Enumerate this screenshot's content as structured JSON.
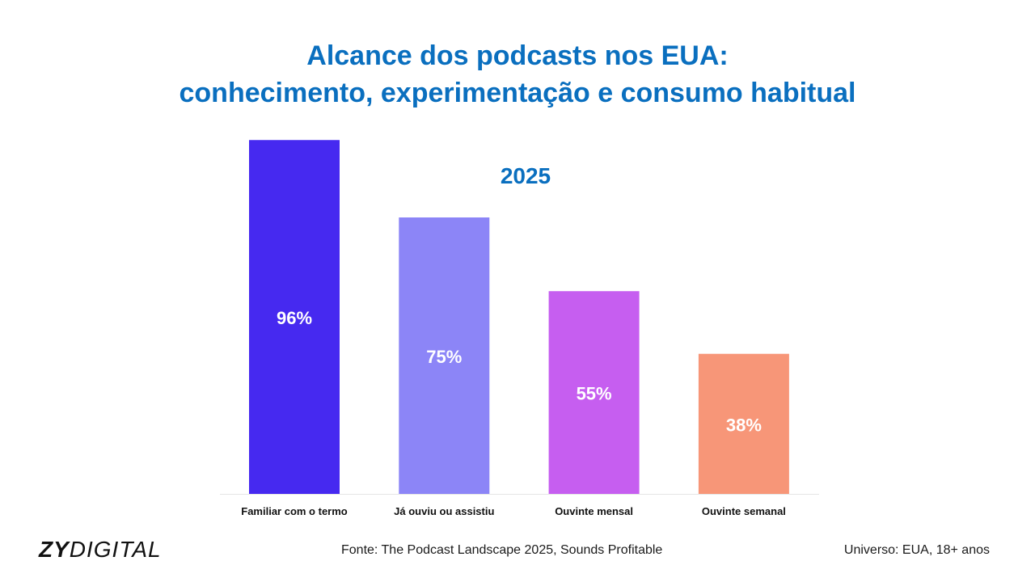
{
  "title_lines": [
    "Alcance dos podcasts nos EUA:",
    "conhecimento, experimentação e consumo habitual"
  ],
  "footer": {
    "logo_bold": "ZY",
    "logo_light": "DIGITAL",
    "source": "Fonte: The Podcast Landscape 2025, Sounds Profitable",
    "universe": "Universo: EUA, 18+ anos"
  },
  "chart_data": {
    "type": "bar",
    "title": "Alcance dos podcasts nos EUA: conhecimento, experimentação e consumo habitual",
    "subtitle": "2025",
    "categories": [
      "Familiar com o termo",
      "Já ouviu ou assistiu",
      "Ouvinte mensal",
      "Ouvinte semanal"
    ],
    "values": [
      96,
      75,
      55,
      38
    ],
    "value_labels": [
      "96%",
      "75%",
      "55%",
      "38%"
    ],
    "colors": [
      "#4629f0",
      "#8c85f7",
      "#c65ef0",
      "#f79678"
    ],
    "label_color": "#ffffff",
    "title_color": "#0a6fbf",
    "xlabel": "",
    "ylabel": "",
    "ylim": [
      0,
      100
    ],
    "grid": false,
    "legend": "none"
  }
}
